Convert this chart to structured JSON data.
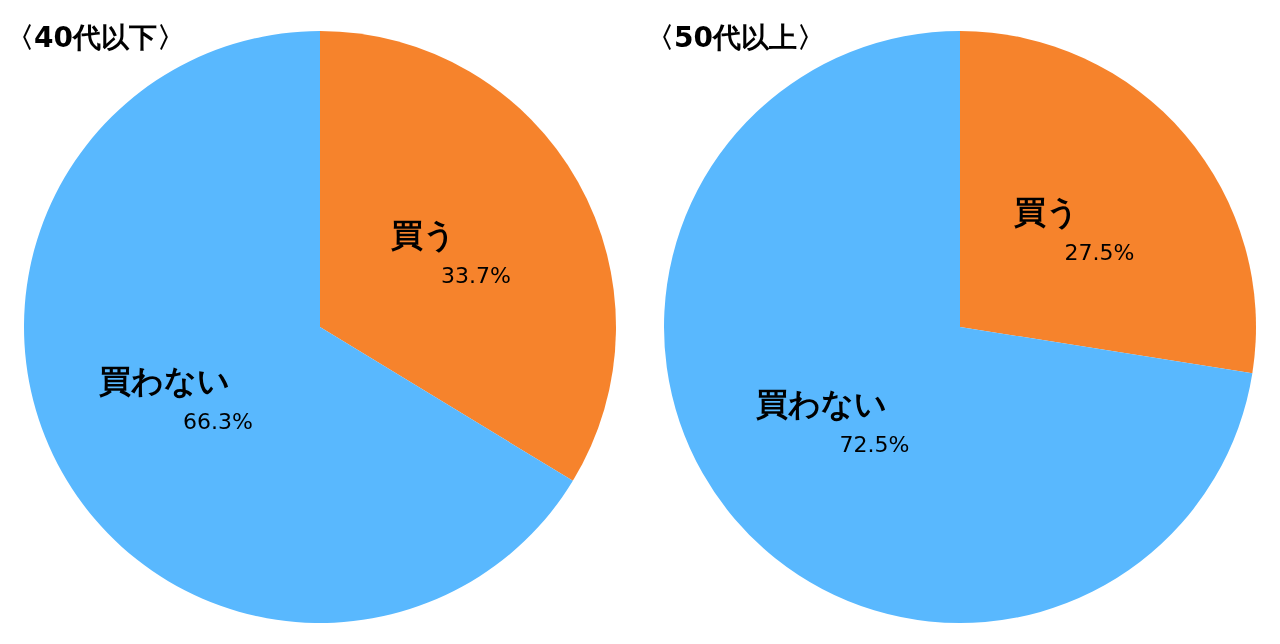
{
  "chart_data": [
    {
      "type": "pie",
      "title": "〈40代以下〉",
      "categories": [
        "買う",
        "買わない"
      ],
      "values": [
        33.7,
        66.3
      ],
      "colors": [
        "#f6832c",
        "#59b8fe"
      ],
      "value_labels": [
        "33.7%",
        "66.3%"
      ]
    },
    {
      "type": "pie",
      "title": "〈50代以上〉",
      "categories": [
        "買う",
        "買わない"
      ],
      "values": [
        27.5,
        72.5
      ],
      "colors": [
        "#f6832c",
        "#59b8fe"
      ],
      "value_labels": [
        "27.5%",
        "72.5%"
      ]
    }
  ]
}
